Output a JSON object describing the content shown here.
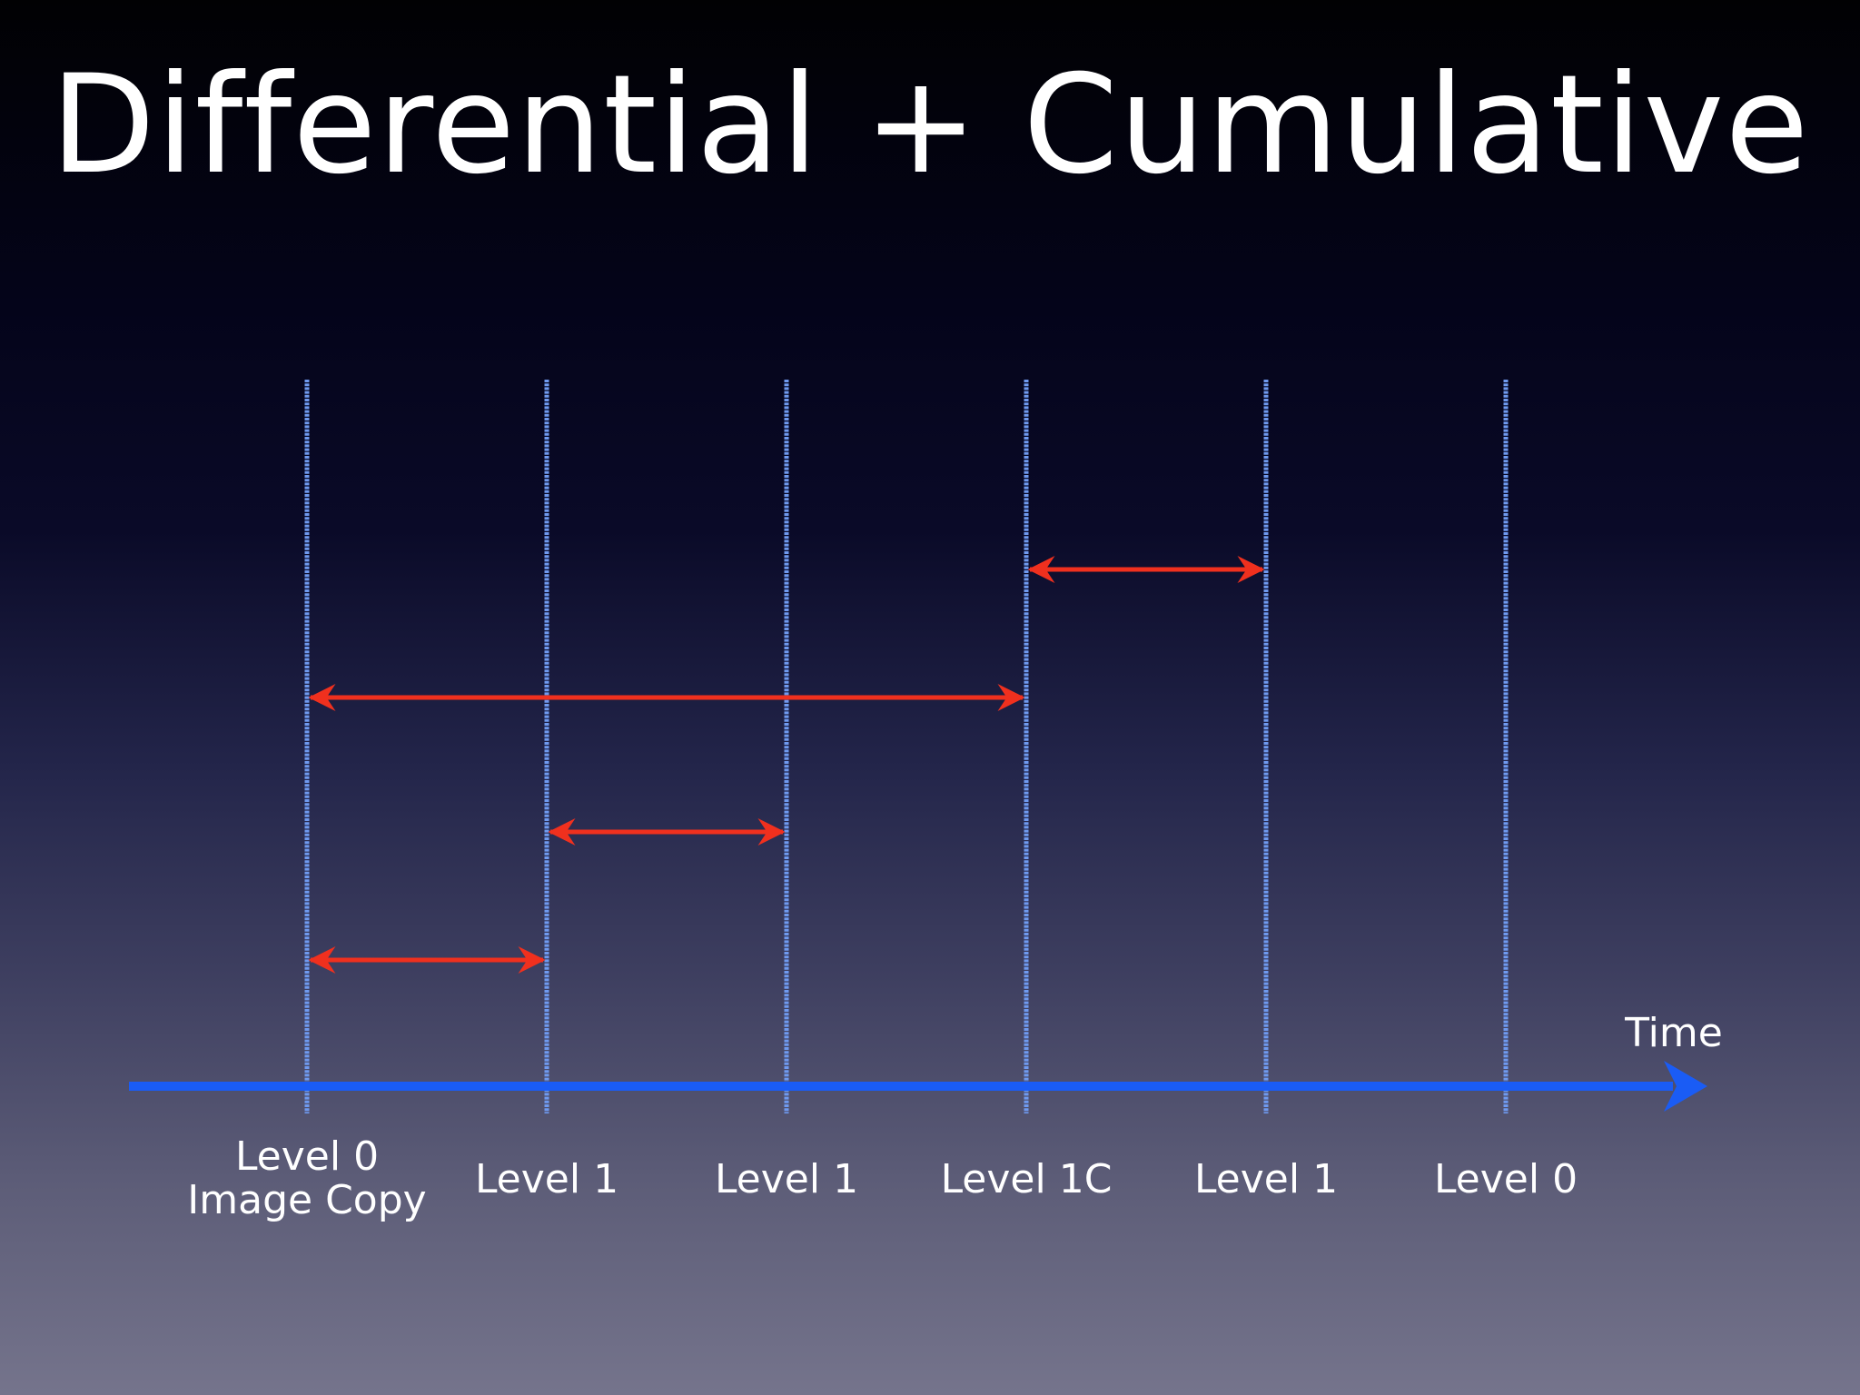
{
  "slide": {
    "title": "Differential + Cumulative"
  },
  "timeline": {
    "axis_label": "Time",
    "markers": [
      {
        "label_lines": [
          "Level 0",
          "Image Copy"
        ]
      },
      {
        "label_lines": [
          "Level 1"
        ]
      },
      {
        "label_lines": [
          "Level 1"
        ]
      },
      {
        "label_lines": [
          "Level 1C"
        ]
      },
      {
        "label_lines": [
          "Level 1"
        ]
      },
      {
        "label_lines": [
          "Level 0"
        ]
      }
    ],
    "arrows": [
      {
        "from": 0,
        "to": 1,
        "row": 1
      },
      {
        "from": 1,
        "to": 2,
        "row": 2
      },
      {
        "from": 0,
        "to": 3,
        "row": 3
      },
      {
        "from": 3,
        "to": 4,
        "row": 4
      }
    ]
  },
  "colors": {
    "axis": "#1a5cf5",
    "markers": "#6f9af0",
    "arrows": "#f0301e",
    "text": "#ffffff"
  }
}
